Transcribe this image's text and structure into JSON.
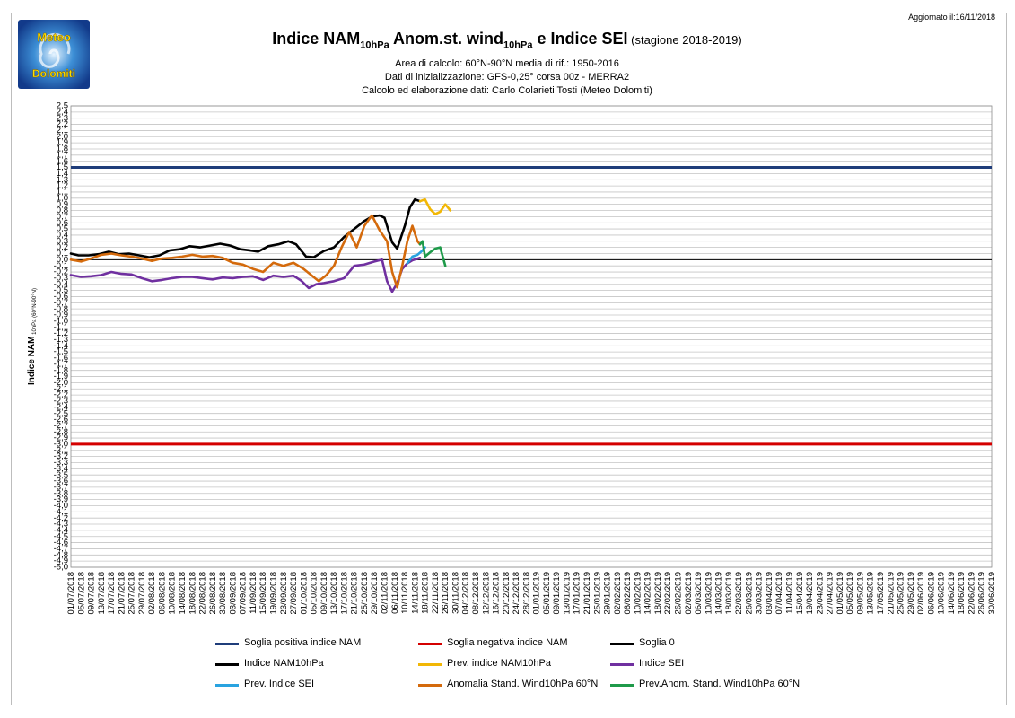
{
  "header": {
    "updated": "Aggiornato il:16/11/2018",
    "logo_text_top": "Meteo",
    "logo_text_bottom": "Dolomiti"
  },
  "titles": {
    "t1": "Indice NAM",
    "t1_sub": "10hPa",
    "t2": " Anom.st. wind",
    "t2_sub": "10hPa",
    "t3": " e Indice SEI",
    "t4": " (stagione 2018-2019)",
    "line1": "Area di calcolo: 60°N-90°N media di rif.: 1950-2016",
    "line2": "Dati di inizializzazione: GFS-0,25° corsa 00z - MERRA2",
    "line3": "Calcolo ed elaborazione dati: Carlo Colarieti Tosti (Meteo Dolomiti)"
  },
  "chart_data": {
    "type": "line",
    "ylabel": "Indice NAM",
    "ylabel_sub": "10hPa (60°N-90°N)",
    "ylim": [
      -5.0,
      2.5
    ],
    "ystep": 0.1,
    "grid": true,
    "x_start": "01/07/2018",
    "x_end": "30/06/2019",
    "x_ticks": [
      "01/07/2018",
      "05/07/2018",
      "09/07/2018",
      "13/07/2018",
      "17/07/2018",
      "21/07/2018",
      "25/07/2018",
      "29/07/2018",
      "02/08/2018",
      "06/08/2018",
      "10/08/2018",
      "14/08/2018",
      "18/08/2018",
      "22/08/2018",
      "26/08/2018",
      "30/08/2018",
      "03/09/2018",
      "07/09/2018",
      "11/09/2018",
      "15/09/2018",
      "19/09/2018",
      "23/09/2018",
      "27/09/2018",
      "01/10/2018",
      "05/10/2018",
      "09/10/2018",
      "13/10/2018",
      "17/10/2018",
      "21/10/2018",
      "25/10/2018",
      "29/10/2018",
      "02/11/2018",
      "06/11/2018",
      "10/11/2018",
      "14/11/2018",
      "18/11/2018",
      "22/11/2018",
      "26/11/2018",
      "30/11/2018",
      "04/12/2018",
      "08/12/2018",
      "12/12/2018",
      "16/12/2018",
      "20/12/2018",
      "24/12/2018",
      "28/12/2018",
      "01/01/2019",
      "05/01/2019",
      "09/01/2019",
      "13/01/2019",
      "17/01/2019",
      "21/01/2019",
      "25/01/2019",
      "29/01/2019",
      "02/02/2019",
      "06/02/2019",
      "10/02/2019",
      "14/02/2019",
      "18/02/2019",
      "22/02/2019",
      "26/02/2019",
      "02/03/2019",
      "06/03/2019",
      "10/03/2019",
      "14/03/2019",
      "18/03/2019",
      "22/03/2019",
      "26/03/2019",
      "30/03/2019",
      "03/04/2019",
      "07/04/2019",
      "11/04/2019",
      "15/04/2019",
      "19/04/2019",
      "23/04/2019",
      "27/04/2019",
      "01/05/2019",
      "05/05/2019",
      "09/05/2019",
      "13/05/2019",
      "17/05/2019",
      "21/05/2019",
      "25/05/2019",
      "29/05/2019",
      "02/06/2019",
      "06/06/2019",
      "10/06/2019",
      "14/06/2019",
      "18/06/2019",
      "22/06/2019",
      "26/06/2019",
      "30/06/2019"
    ],
    "thresholds": [
      {
        "name": "Soglia positiva indice NAM",
        "value": 1.5,
        "color": "#1f3d7a"
      },
      {
        "name": "Soglia negativa indice NAM",
        "value": -3.0,
        "color": "#d40000"
      },
      {
        "name": "Soglia 0",
        "value": 0.0,
        "color": "#000000"
      }
    ],
    "series": [
      {
        "name": "Indice NAM10hPa",
        "color": "#000000",
        "points": [
          [
            "01/07/2018",
            0.1
          ],
          [
            "04/07/2018",
            0.07
          ],
          [
            "08/07/2018",
            0.07
          ],
          [
            "12/07/2018",
            0.09
          ],
          [
            "16/07/2018",
            0.13
          ],
          [
            "20/07/2018",
            0.09
          ],
          [
            "24/07/2018",
            0.1
          ],
          [
            "28/07/2018",
            0.07
          ],
          [
            "01/08/2018",
            0.04
          ],
          [
            "05/08/2018",
            0.07
          ],
          [
            "09/08/2018",
            0.15
          ],
          [
            "13/08/2018",
            0.17
          ],
          [
            "17/08/2018",
            0.22
          ],
          [
            "21/08/2018",
            0.2
          ],
          [
            "25/08/2018",
            0.23
          ],
          [
            "29/08/2018",
            0.26
          ],
          [
            "02/09/2018",
            0.23
          ],
          [
            "06/09/2018",
            0.17
          ],
          [
            "10/09/2018",
            0.15
          ],
          [
            "13/09/2018",
            0.13
          ],
          [
            "17/09/2018",
            0.22
          ],
          [
            "21/09/2018",
            0.25
          ],
          [
            "25/09/2018",
            0.3
          ],
          [
            "28/09/2018",
            0.25
          ],
          [
            "02/10/2018",
            0.05
          ],
          [
            "05/10/2018",
            0.04
          ],
          [
            "09/10/2018",
            0.14
          ],
          [
            "13/10/2018",
            0.2
          ],
          [
            "17/10/2018",
            0.37
          ],
          [
            "21/10/2018",
            0.5
          ],
          [
            "25/10/2018",
            0.63
          ],
          [
            "28/10/2018",
            0.7
          ],
          [
            "31/10/2018",
            0.72
          ],
          [
            "02/11/2018",
            0.68
          ],
          [
            "05/11/2018",
            0.28
          ],
          [
            "07/11/2018",
            0.18
          ],
          [
            "10/11/2018",
            0.55
          ],
          [
            "12/11/2018",
            0.85
          ],
          [
            "14/11/2018",
            0.98
          ],
          [
            "16/11/2018",
            0.95
          ]
        ]
      },
      {
        "name": "Prev. indice NAM10hPa",
        "color": "#f2b705",
        "points": [
          [
            "16/11/2018",
            0.95
          ],
          [
            "18/11/2018",
            0.98
          ],
          [
            "20/11/2018",
            0.82
          ],
          [
            "22/11/2018",
            0.74
          ],
          [
            "24/11/2018",
            0.78
          ],
          [
            "26/11/2018",
            0.9
          ],
          [
            "28/11/2018",
            0.8
          ]
        ]
      },
      {
        "name": "Indice SEI",
        "color": "#7030a0",
        "points": [
          [
            "01/07/2018",
            -0.25
          ],
          [
            "05/07/2018",
            -0.28
          ],
          [
            "09/07/2018",
            -0.27
          ],
          [
            "13/07/2018",
            -0.25
          ],
          [
            "17/07/2018",
            -0.2
          ],
          [
            "21/07/2018",
            -0.23
          ],
          [
            "25/07/2018",
            -0.24
          ],
          [
            "29/07/2018",
            -0.3
          ],
          [
            "02/08/2018",
            -0.35
          ],
          [
            "06/08/2018",
            -0.33
          ],
          [
            "10/08/2018",
            -0.3
          ],
          [
            "14/08/2018",
            -0.28
          ],
          [
            "18/08/2018",
            -0.28
          ],
          [
            "22/08/2018",
            -0.3
          ],
          [
            "26/08/2018",
            -0.32
          ],
          [
            "30/08/2018",
            -0.29
          ],
          [
            "03/09/2018",
            -0.3
          ],
          [
            "07/09/2018",
            -0.28
          ],
          [
            "11/09/2018",
            -0.27
          ],
          [
            "15/09/2018",
            -0.33
          ],
          [
            "19/09/2018",
            -0.26
          ],
          [
            "23/09/2018",
            -0.28
          ],
          [
            "27/09/2018",
            -0.26
          ],
          [
            "30/09/2018",
            -0.34
          ],
          [
            "03/10/2018",
            -0.46
          ],
          [
            "06/10/2018",
            -0.4
          ],
          [
            "09/10/2018",
            -0.38
          ],
          [
            "13/10/2018",
            -0.35
          ],
          [
            "17/10/2018",
            -0.3
          ],
          [
            "21/10/2018",
            -0.1
          ],
          [
            "25/10/2018",
            -0.08
          ],
          [
            "29/10/2018",
            -0.03
          ],
          [
            "01/11/2018",
            0.0
          ],
          [
            "03/11/2018",
            -0.35
          ],
          [
            "05/11/2018",
            -0.52
          ],
          [
            "07/11/2018",
            -0.38
          ],
          [
            "09/11/2018",
            -0.15
          ],
          [
            "11/11/2018",
            -0.06
          ],
          [
            "13/11/2018",
            -0.01
          ],
          [
            "16/11/2018",
            0.03
          ]
        ]
      },
      {
        "name": "Prev. Indice SEI",
        "color": "#29a3e0",
        "points": [
          [
            "11/11/2018",
            -0.06
          ],
          [
            "13/11/2018",
            0.05
          ],
          [
            "15/11/2018",
            0.08
          ],
          [
            "17/11/2018",
            0.15
          ],
          [
            "18/11/2018",
            0.2
          ]
        ]
      },
      {
        "name": "Anomalia Stand. Wind10hPa 60°N",
        "color": "#d46a0c",
        "points": [
          [
            "01/07/2018",
            0.0
          ],
          [
            "05/07/2018",
            -0.03
          ],
          [
            "09/07/2018",
            0.02
          ],
          [
            "13/07/2018",
            0.08
          ],
          [
            "17/07/2018",
            0.1
          ],
          [
            "21/07/2018",
            0.07
          ],
          [
            "25/07/2018",
            0.05
          ],
          [
            "29/07/2018",
            0.02
          ],
          [
            "02/08/2018",
            -0.02
          ],
          [
            "06/08/2018",
            0.02
          ],
          [
            "10/08/2018",
            0.03
          ],
          [
            "14/08/2018",
            0.05
          ],
          [
            "18/08/2018",
            0.08
          ],
          [
            "22/08/2018",
            0.05
          ],
          [
            "26/08/2018",
            0.06
          ],
          [
            "30/08/2018",
            0.03
          ],
          [
            "03/09/2018",
            -0.05
          ],
          [
            "07/09/2018",
            -0.08
          ],
          [
            "11/09/2018",
            -0.15
          ],
          [
            "15/09/2018",
            -0.2
          ],
          [
            "19/09/2018",
            -0.05
          ],
          [
            "23/09/2018",
            -0.1
          ],
          [
            "27/09/2018",
            -0.05
          ],
          [
            "01/10/2018",
            -0.15
          ],
          [
            "04/10/2018",
            -0.25
          ],
          [
            "07/10/2018",
            -0.35
          ],
          [
            "10/10/2018",
            -0.25
          ],
          [
            "13/10/2018",
            -0.1
          ],
          [
            "16/10/2018",
            0.2
          ],
          [
            "19/10/2018",
            0.45
          ],
          [
            "22/10/2018",
            0.2
          ],
          [
            "25/10/2018",
            0.55
          ],
          [
            "28/10/2018",
            0.72
          ],
          [
            "31/10/2018",
            0.48
          ],
          [
            "03/11/2018",
            0.3
          ],
          [
            "05/11/2018",
            -0.2
          ],
          [
            "07/11/2018",
            -0.45
          ],
          [
            "09/11/2018",
            -0.1
          ],
          [
            "11/11/2018",
            0.3
          ],
          [
            "13/11/2018",
            0.55
          ],
          [
            "15/11/2018",
            0.3
          ],
          [
            "16/11/2018",
            0.25
          ]
        ]
      },
      {
        "name": "Prev.Anom. Stand. Wind10hPa 60°N",
        "color": "#1f9a4a",
        "points": [
          [
            "16/11/2018",
            0.25
          ],
          [
            "17/11/2018",
            0.3
          ],
          [
            "18/11/2018",
            0.05
          ],
          [
            "20/11/2018",
            0.12
          ],
          [
            "22/11/2018",
            0.18
          ],
          [
            "24/11/2018",
            0.2
          ],
          [
            "26/11/2018",
            -0.1
          ]
        ]
      }
    ]
  },
  "legend": [
    {
      "label": "Soglia positiva indice NAM",
      "color": "#1f3d7a"
    },
    {
      "label": "Soglia negativa indice NAM",
      "color": "#d40000"
    },
    {
      "label": "Soglia 0",
      "color": "#000000"
    },
    {
      "label": "Indice NAM10hPa",
      "color": "#000000"
    },
    {
      "label": "Prev. indice NAM10hPa",
      "color": "#f2b705"
    },
    {
      "label": "Indice SEI",
      "color": "#7030a0"
    },
    {
      "label": "Prev. Indice SEI",
      "color": "#29a3e0"
    },
    {
      "label": "Anomalia Stand. Wind10hPa 60°N",
      "color": "#d46a0c"
    },
    {
      "label": "Prev.Anom. Stand. Wind10hPa 60°N",
      "color": "#1f9a4a"
    }
  ]
}
